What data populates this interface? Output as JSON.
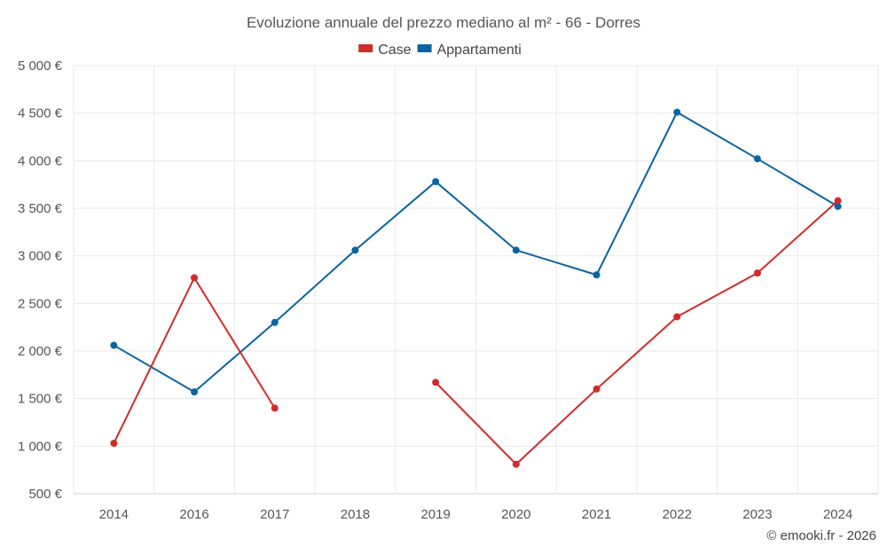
{
  "chart_data": {
    "type": "line",
    "title": "Evoluzione annuale del prezzo mediano al m² - 66 - Dorres",
    "categories": [
      "2014",
      "2016",
      "2017",
      "2018",
      "2019",
      "2020",
      "2021",
      "2022",
      "2023",
      "2024"
    ],
    "ylim": [
      500,
      5000
    ],
    "yticks": [
      500,
      1000,
      1500,
      2000,
      2500,
      3000,
      3500,
      4000,
      4500,
      5000
    ],
    "ytick_labels": [
      "500 €",
      "1 000 €",
      "1 500 €",
      "2 000 €",
      "2 500 €",
      "3 000 €",
      "3 500 €",
      "4 000 €",
      "4 500 €",
      "5 000 €"
    ],
    "grid": true,
    "legend_position": "top-center",
    "series": [
      {
        "name": "Case",
        "color": "#d32a2a",
        "values": [
          1030,
          2770,
          1400,
          null,
          1670,
          810,
          1600,
          2360,
          2820,
          3580
        ]
      },
      {
        "name": "Appartamenti",
        "color": "#0a64a0",
        "values": [
          2060,
          1570,
          2300,
          3060,
          3780,
          3060,
          2800,
          4510,
          4020,
          3520
        ]
      }
    ]
  },
  "credit": "© emooki.fr - 2026"
}
